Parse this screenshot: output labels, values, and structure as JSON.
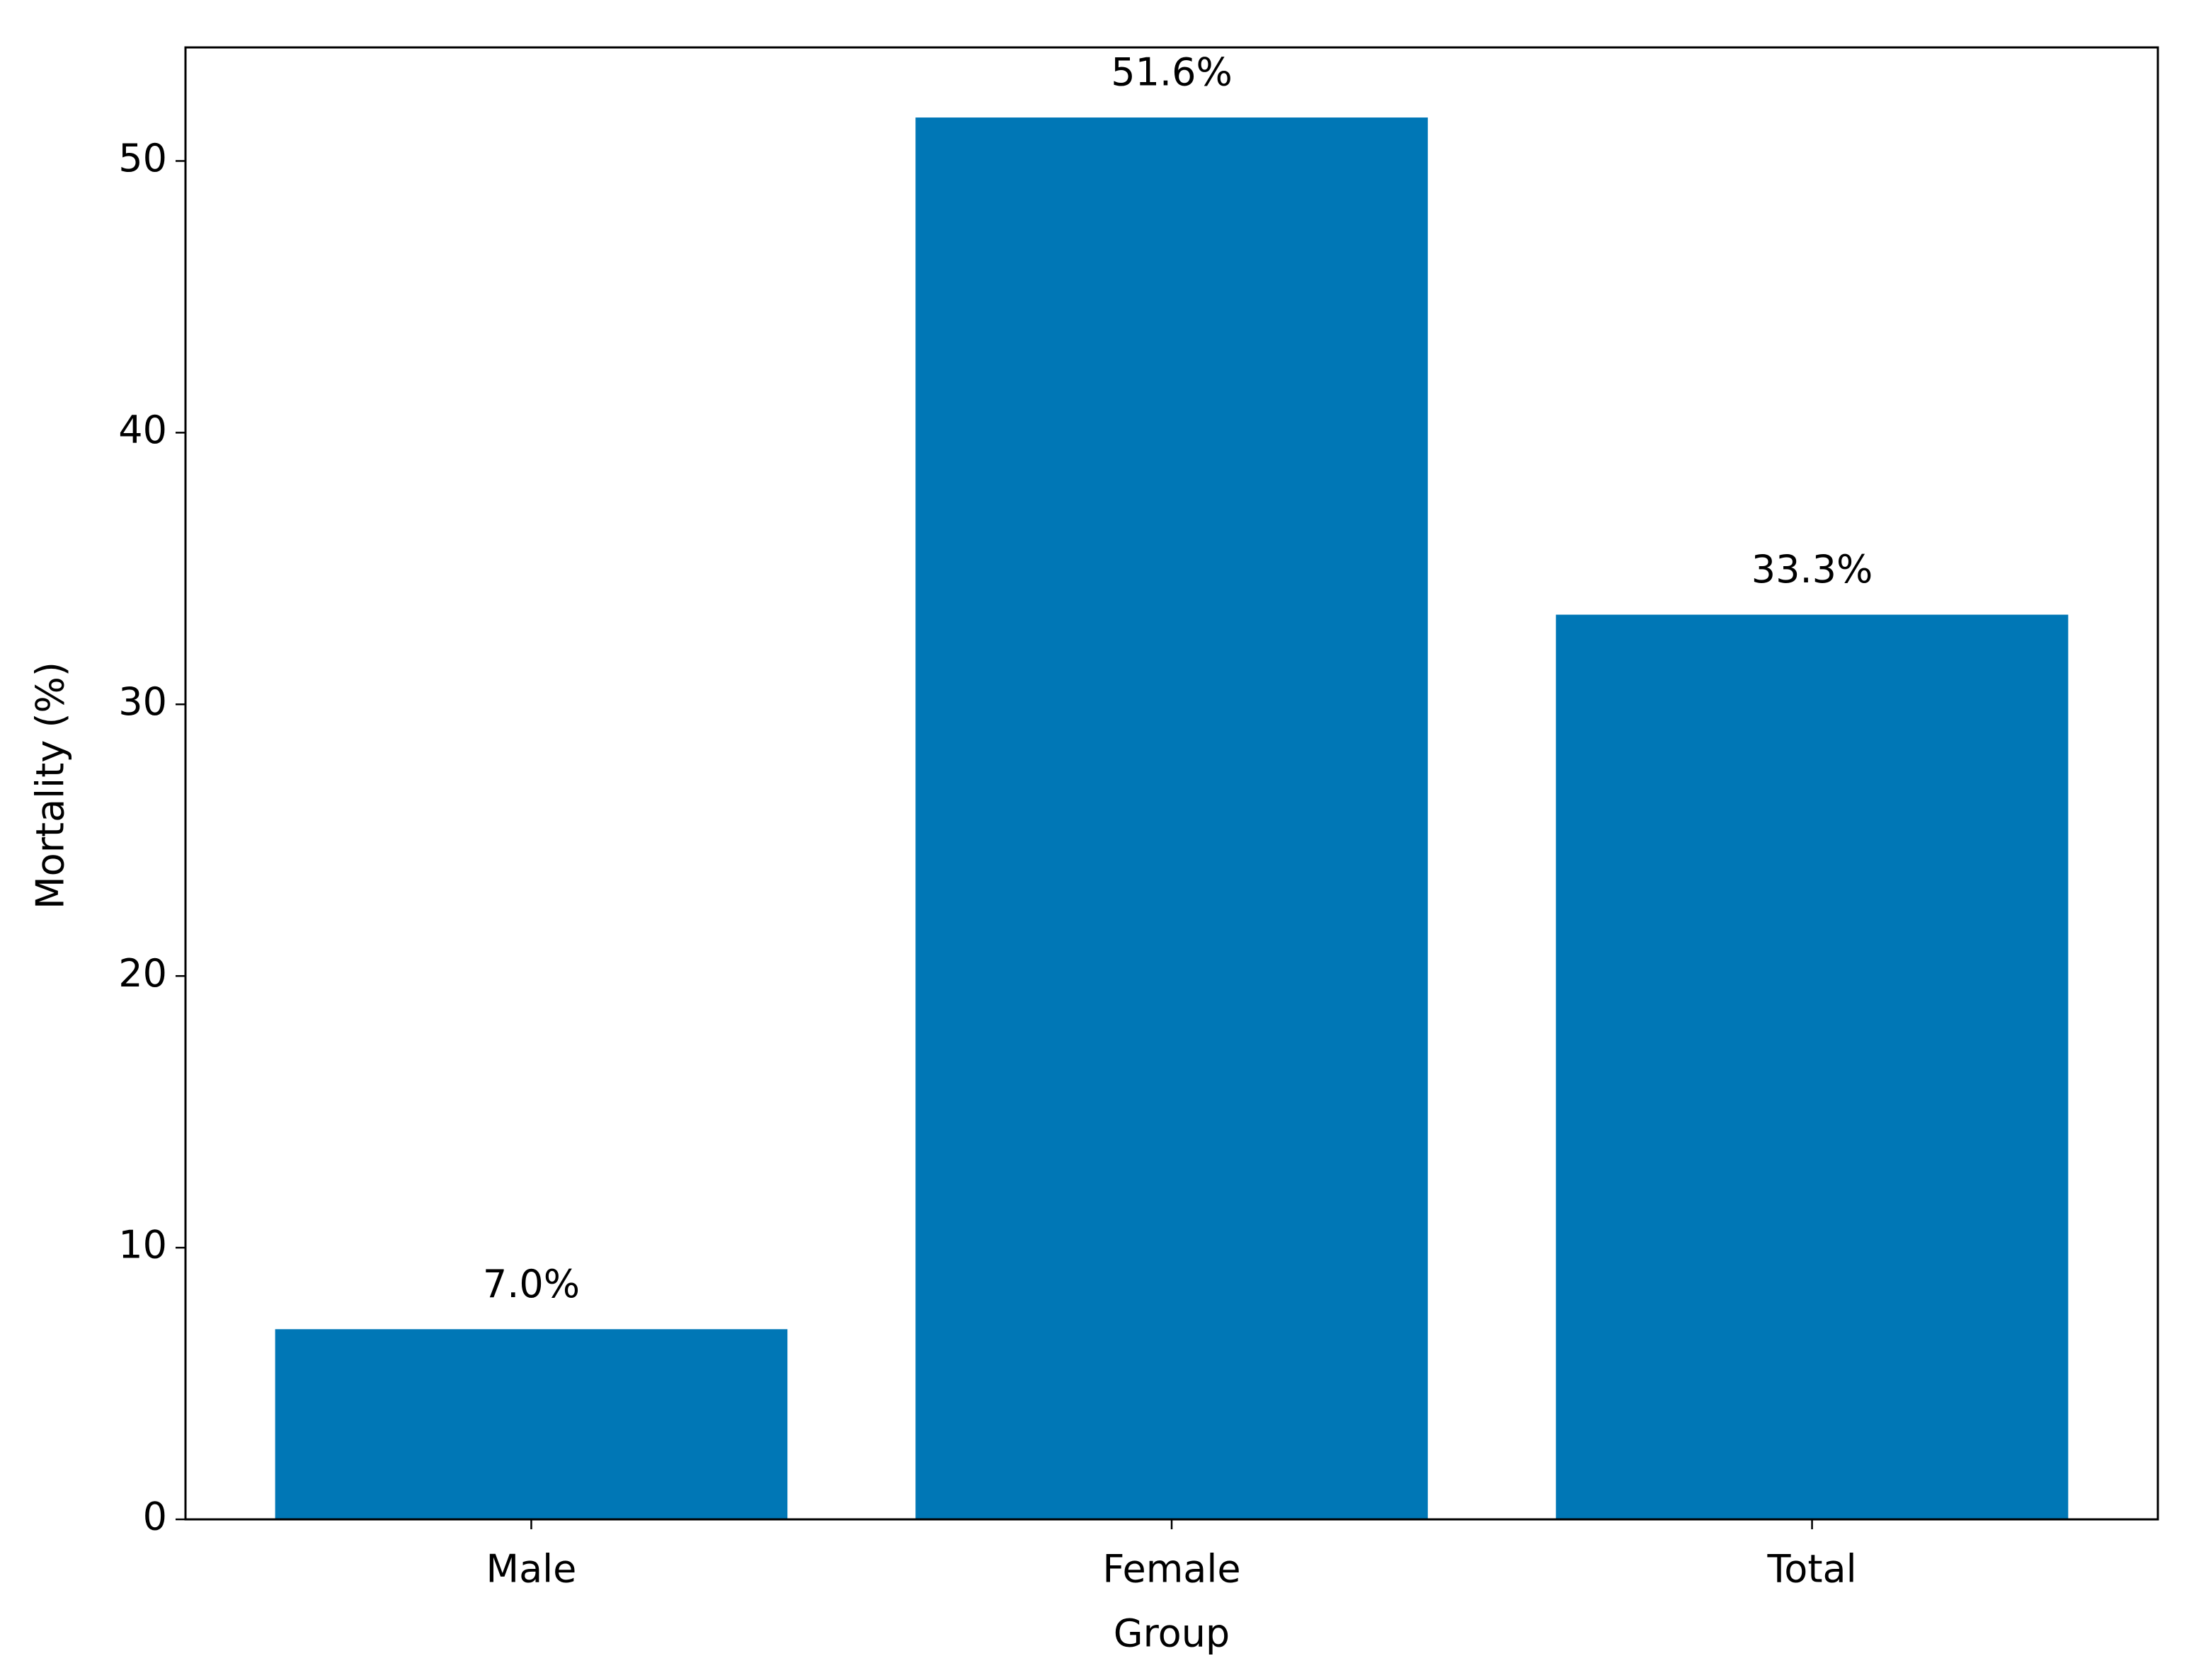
{
  "chart_data": {
    "type": "bar",
    "x_label": "Group",
    "y_label": "Mortality (%)",
    "categories": [
      "Male",
      "Female",
      "Total"
    ],
    "values": [
      7.0,
      51.6,
      33.3
    ],
    "value_labels": [
      "7.0%",
      "51.6%",
      "33.3%"
    ],
    "color": "#0077b6",
    "ylim": [
      0,
      54.18
    ],
    "yticks": [
      0,
      10,
      20,
      30,
      40,
      50
    ],
    "grid": false
  }
}
